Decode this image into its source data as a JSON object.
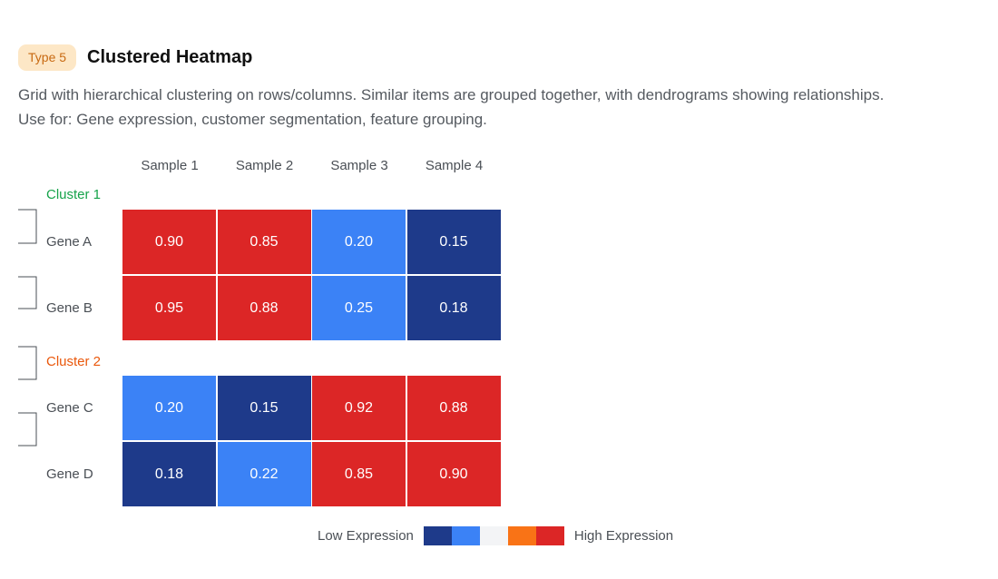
{
  "header": {
    "badge": "Type 5",
    "title": "Clustered Heatmap"
  },
  "description": {
    "line1": "Grid with hierarchical clustering on rows/columns. Similar items are grouped together, with dendrograms showing relationships.",
    "line2": "Use for: Gene expression, customer segmentation, feature grouping."
  },
  "colors": {
    "dark_blue": "#1e3a8a",
    "blue": "#3b82f6",
    "light": "#f3f4f6",
    "orange": "#f97316",
    "red": "#dc2626",
    "cluster1": "#16a34a",
    "cluster2": "#ea580c"
  },
  "chart_data": {
    "type": "heatmap",
    "columns": [
      "Sample 1",
      "Sample 2",
      "Sample 3",
      "Sample 4"
    ],
    "clusters": [
      {
        "name": "Cluster 1",
        "rows": [
          {
            "label": "Gene A",
            "values": [
              "0.90",
              "0.85",
              "0.20",
              "0.15"
            ]
          },
          {
            "label": "Gene B",
            "values": [
              "0.95",
              "0.88",
              "0.25",
              "0.18"
            ]
          }
        ]
      },
      {
        "name": "Cluster 2",
        "rows": [
          {
            "label": "Gene C",
            "values": [
              "0.20",
              "0.15",
              "0.92",
              "0.88"
            ]
          },
          {
            "label": "Gene D",
            "values": [
              "0.18",
              "0.22",
              "0.85",
              "0.90"
            ]
          }
        ]
      }
    ],
    "legend": {
      "low_label": "Low Expression",
      "high_label": "High Expression",
      "scale": [
        "#1e3a8a",
        "#3b82f6",
        "#f3f4f6",
        "#f97316",
        "#dc2626"
      ]
    }
  }
}
